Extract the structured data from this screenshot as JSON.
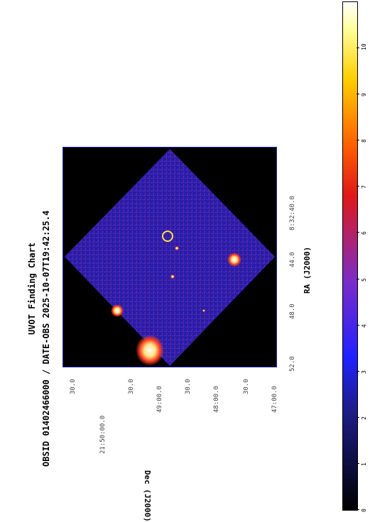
{
  "title": "UVOT Finding Chart",
  "subtitle": "OBSID 01402466000 / DATE-OBS 2025-10-07T19:42:25.4",
  "xlabel": "RA (J2000)",
  "ylabel": "Dec (J2000)",
  "ra_ticks": [
    "52.0",
    "48.0",
    "44.0",
    "8:32:40.0"
  ],
  "dec_ticks": [
    "30.0",
    "21:50:00.0",
    "30.0",
    "49:00.0",
    "30.0",
    "48:00.0",
    "30.0",
    "47:00.0"
  ],
  "colorbar": {
    "ticks": [
      "0",
      "1",
      "2",
      "3",
      "4",
      "5",
      "6",
      "7",
      "8",
      "9",
      "10"
    ],
    "min": 0,
    "max": 11
  },
  "colors": {
    "frame": "#1a2cb0",
    "field": "#2a1fa8",
    "circle": "#ffe040"
  }
}
